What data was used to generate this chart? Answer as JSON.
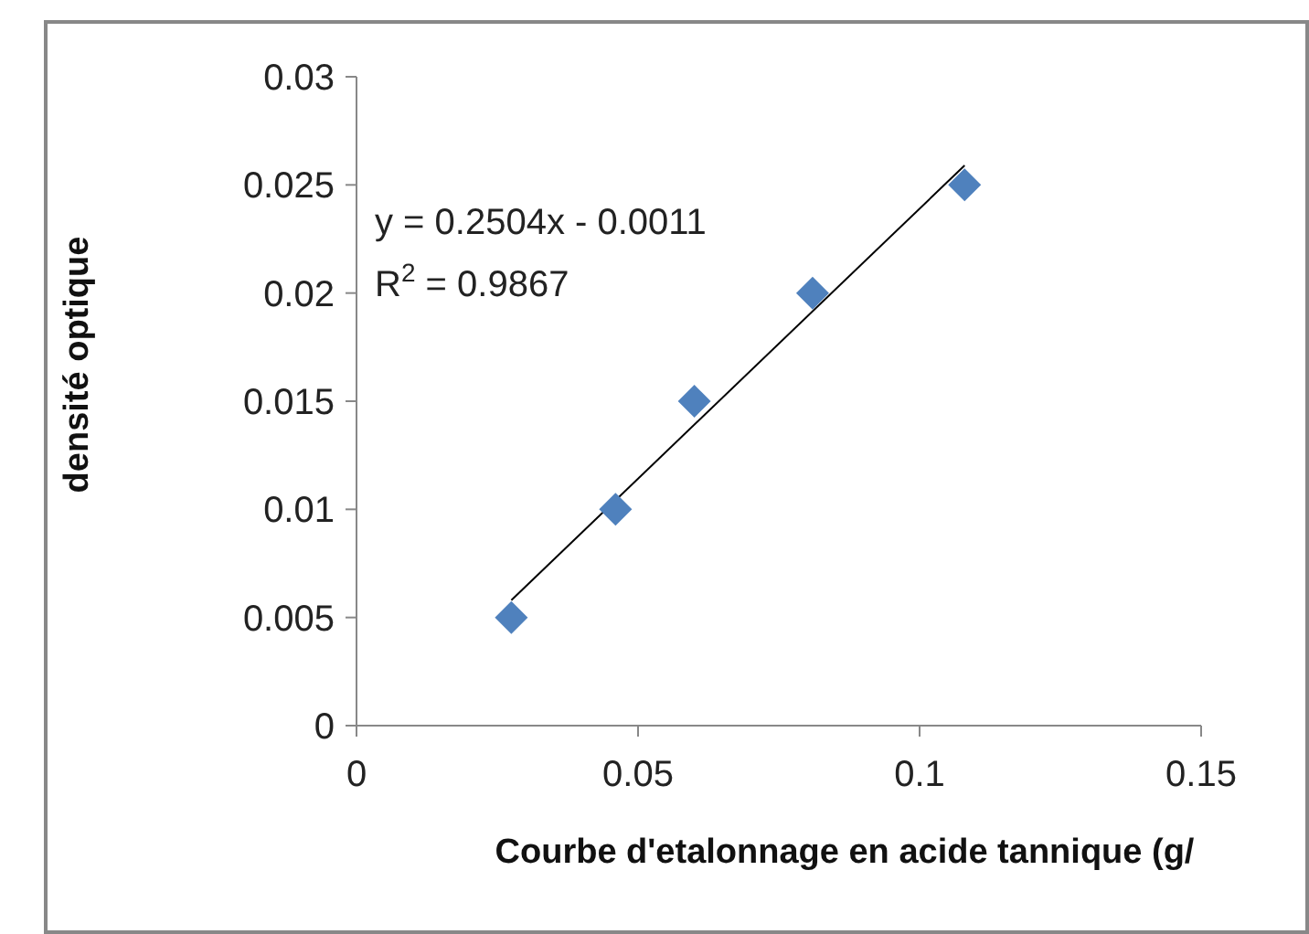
{
  "chart_data": {
    "type": "scatter",
    "xlabel": "Courbe d'etalonnage en acide tannique (g/",
    "ylabel": "densité optique",
    "xlim": [
      0,
      0.15
    ],
    "xticks": [
      0,
      0.05,
      0.1,
      0.15
    ],
    "ylim": [
      0,
      0.03
    ],
    "yticks": [
      0,
      0.005,
      0.01,
      0.015,
      0.02,
      0.025,
      0.03
    ],
    "grid": false,
    "series": [
      {
        "color": "#4f81bd",
        "marker": "diamond",
        "x": [
          0.0275,
          0.046,
          0.06,
          0.081,
          0.108
        ],
        "values": [
          0.005,
          0.01,
          0.015,
          0.02,
          0.025
        ]
      },
      {
        "type": "line",
        "color": "#000000",
        "line_style": "solid",
        "x": [
          0.0275,
          0.108
        ],
        "values": [
          0.0058,
          0.0259
        ]
      }
    ],
    "annotations": [
      "y = 0.2504x - 0.0011",
      "R$^{2}$ = 0.9867"
    ]
  }
}
